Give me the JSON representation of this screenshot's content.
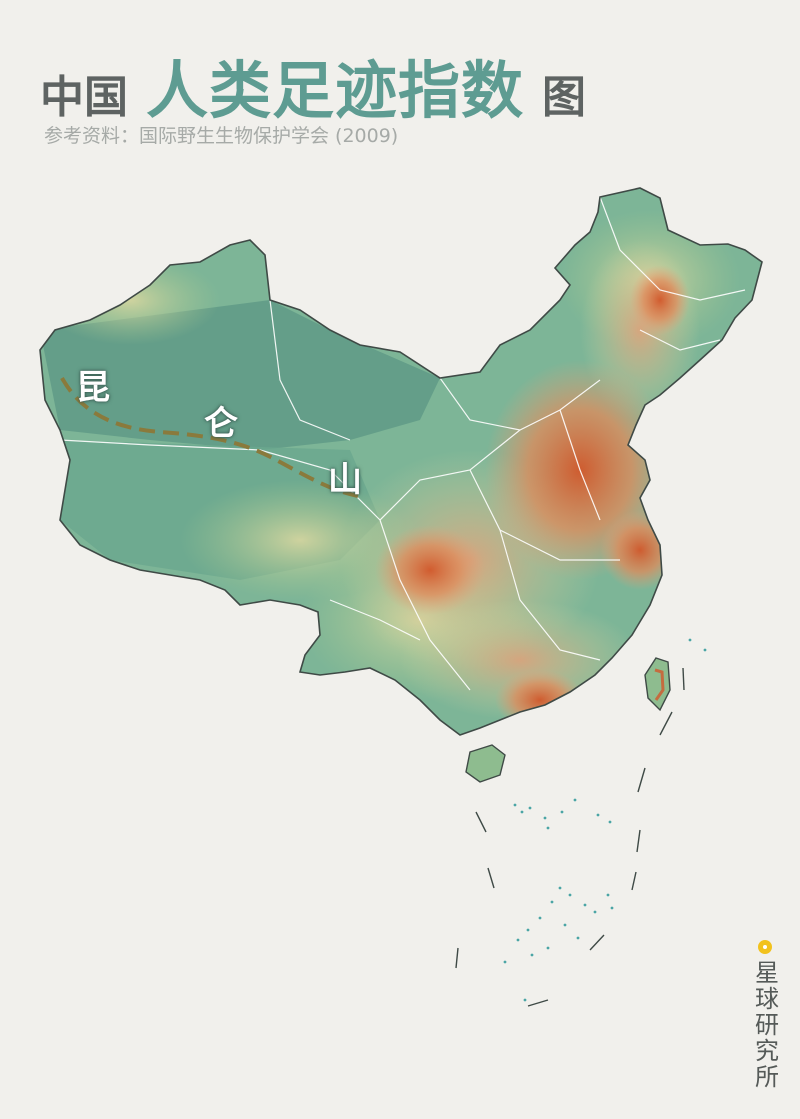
{
  "title": {
    "prefix": "中国",
    "highlight": "人类足迹指数",
    "suffix": "图"
  },
  "subtitle": "参考资料：国际野生生物保护学会 (2009)",
  "map": {
    "labels": [
      "昆",
      "仑",
      "山"
    ]
  },
  "colors": {
    "low": "#6ea88e",
    "mid_low": "#a9c98f",
    "mid": "#d9d7a0",
    "mid_high": "#e3a27a",
    "high": "#d2572a",
    "highlight_title": "#5e9c92",
    "mountain_line": "#8a7a3c",
    "brand_dot": "#f2c21d"
  },
  "brand": {
    "name": "星球研究所",
    "icon": "circle-logo-icon"
  }
}
